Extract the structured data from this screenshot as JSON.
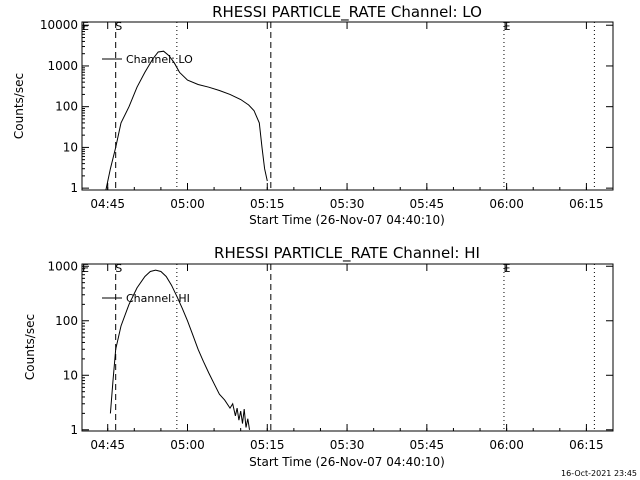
{
  "footer": {
    "timestamp": "16-Oct-2021 23:45"
  },
  "chart_data": [
    {
      "type": "line",
      "title": "RHESSI PARTICLE_RATE Channel: LO",
      "xlabel": "Start Time (26-Nov-07 04:40:10)",
      "ylabel": "Counts/sec",
      "yscale": "log",
      "xlim": [
        "04:40:10",
        "06:20:00"
      ],
      "ylim": [
        0.9,
        12000
      ],
      "x_ticks": [
        "04:45",
        "05:00",
        "05:15",
        "05:30",
        "05:45",
        "06:00",
        "06:15"
      ],
      "y_ticks": [
        {
          "value": 1,
          "label": "1"
        },
        {
          "value": 10,
          "label": "10"
        },
        {
          "value": 100,
          "label": "100"
        },
        {
          "value": 1000,
          "label": "1000"
        },
        {
          "value": 10000,
          "label": "10000"
        }
      ],
      "legend": {
        "position": "top-left",
        "entries": [
          "Channel: LO"
        ]
      },
      "series": [
        {
          "name": "Channel: LO",
          "x": [
            "04:44:40",
            "04:45:30",
            "04:46:30",
            "04:47:30",
            "04:49:00",
            "04:50:30",
            "04:52:00",
            "04:53:30",
            "04:54:30",
            "04:55:30",
            "04:56:30",
            "04:57:30",
            "04:58:30",
            "05:00:00",
            "05:02:00",
            "05:04:00",
            "05:06:00",
            "05:08:00",
            "05:10:00",
            "05:11:30",
            "05:12:30",
            "05:13:30",
            "05:14:00",
            "05:14:30",
            "05:15:00"
          ],
          "y": [
            0.9,
            3,
            10,
            40,
            100,
            300,
            700,
            1500,
            2200,
            2300,
            1800,
            1200,
            700,
            450,
            350,
            300,
            250,
            200,
            150,
            110,
            80,
            40,
            10,
            3,
            1.5
          ]
        }
      ],
      "vlines": [
        {
          "x": "04:46:30",
          "style": "dashed",
          "label": "S"
        },
        {
          "x": "04:58:00",
          "style": "dotted",
          "label": ""
        },
        {
          "x": "05:15:40",
          "style": "dashed",
          "label": ""
        },
        {
          "x": "05:59:30",
          "style": "dotted",
          "label": "E"
        },
        {
          "x": "06:16:30",
          "style": "dotted",
          "label": ""
        }
      ],
      "left_mark": "E"
    },
    {
      "type": "line",
      "title": "RHESSI PARTICLE_RATE Channel: HI",
      "xlabel": "Start Time (26-Nov-07 04:40:10)",
      "ylabel": "Counts/sec",
      "yscale": "log",
      "xlim": [
        "04:40:10",
        "06:20:00"
      ],
      "ylim": [
        0.95,
        1100
      ],
      "x_ticks": [
        "04:45",
        "05:00",
        "05:15",
        "05:30",
        "05:45",
        "06:00",
        "06:15"
      ],
      "y_ticks": [
        {
          "value": 1,
          "label": "1"
        },
        {
          "value": 10,
          "label": "10"
        },
        {
          "value": 100,
          "label": "100"
        },
        {
          "value": 1000,
          "label": "1000"
        }
      ],
      "legend": {
        "position": "top-left",
        "entries": [
          "Channel: HI"
        ]
      },
      "series": [
        {
          "name": "Channel: HI",
          "x": [
            "04:45:30",
            "04:46:00",
            "04:46:30",
            "04:47:30",
            "04:49:00",
            "04:50:30",
            "04:52:00",
            "04:53:00",
            "04:54:00",
            "04:55:00",
            "04:56:00",
            "04:57:00",
            "04:58:00",
            "04:59:00",
            "05:00:00",
            "05:01:00",
            "05:02:00",
            "05:03:00",
            "05:04:00",
            "05:05:00",
            "05:06:00",
            "05:07:00",
            "05:08:00",
            "05:08:30",
            "05:09:00",
            "05:09:20",
            "05:09:40",
            "05:10:00",
            "05:10:20",
            "05:10:40",
            "05:11:00",
            "05:11:20",
            "05:11:40"
          ],
          "y": [
            2,
            8,
            30,
            80,
            200,
            400,
            650,
            800,
            850,
            800,
            650,
            450,
            280,
            170,
            100,
            55,
            30,
            18,
            11,
            7,
            4.5,
            3.5,
            2.5,
            3,
            1.8,
            2.5,
            1.5,
            2.2,
            1.3,
            2.4,
            1.1,
            1.6,
            1
          ]
        }
      ],
      "vlines": [
        {
          "x": "04:46:30",
          "style": "dashed",
          "label": "S"
        },
        {
          "x": "04:58:00",
          "style": "dotted",
          "label": ""
        },
        {
          "x": "05:15:40",
          "style": "dashed",
          "label": ""
        },
        {
          "x": "05:59:30",
          "style": "dotted",
          "label": "E"
        },
        {
          "x": "06:16:30",
          "style": "dotted",
          "label": ""
        }
      ],
      "left_mark": "E"
    }
  ]
}
